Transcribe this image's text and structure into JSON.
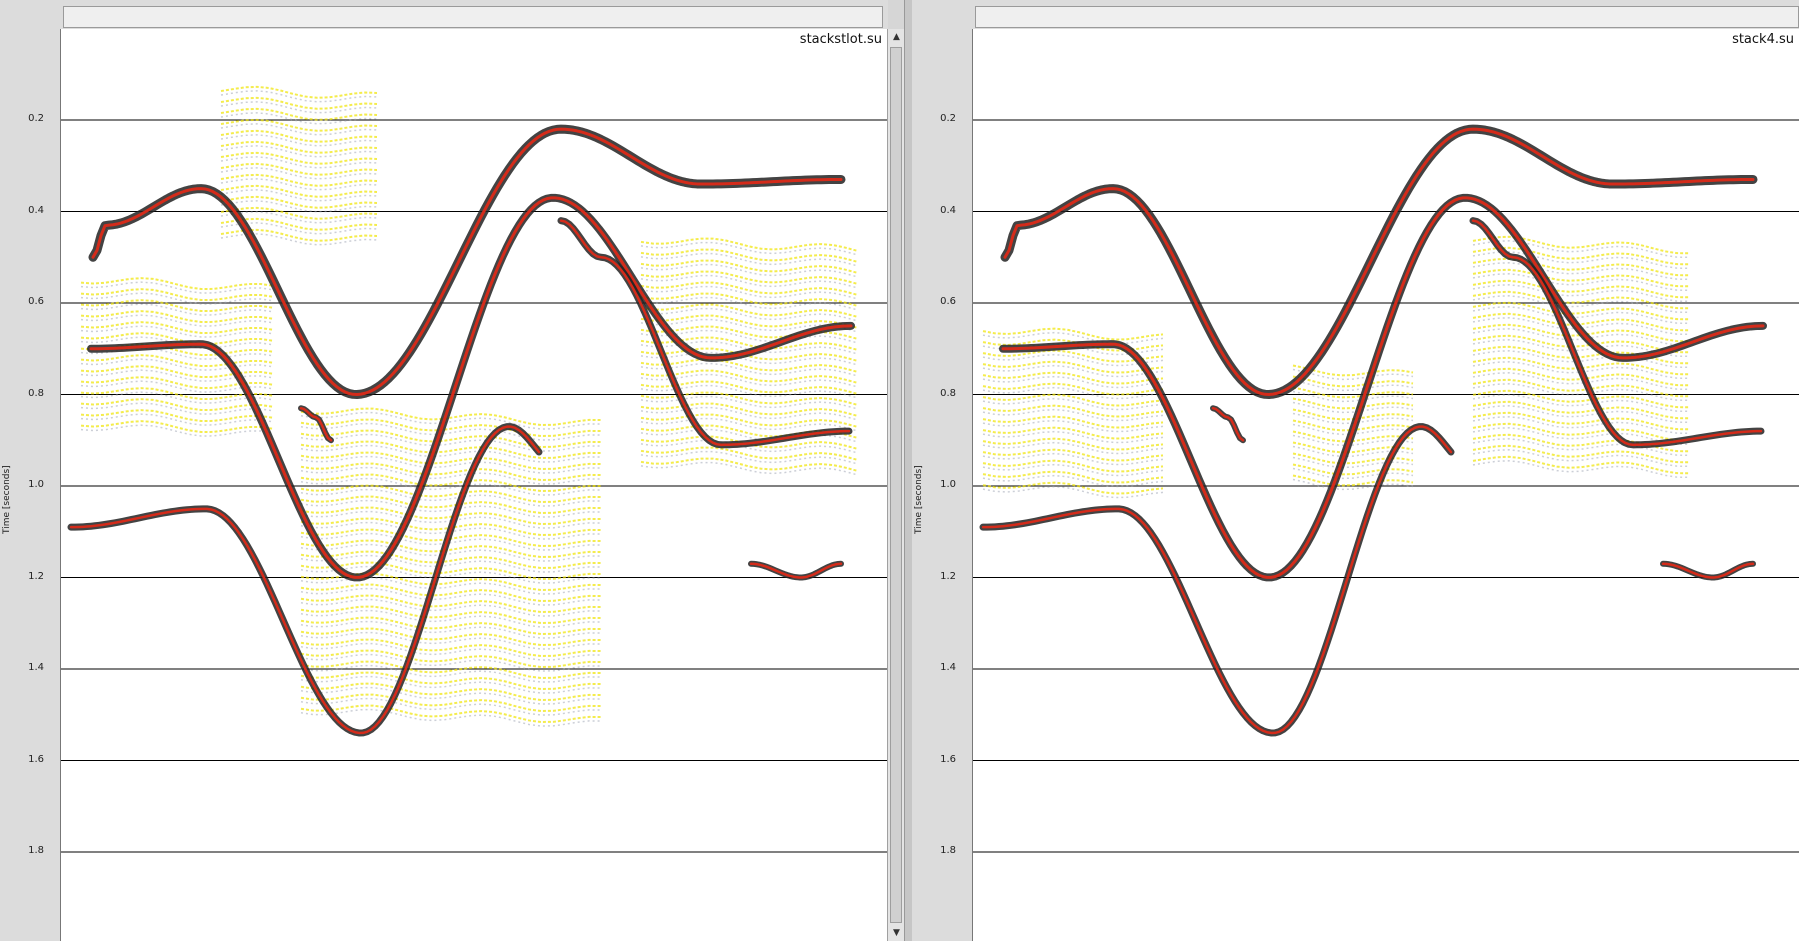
{
  "panels": [
    {
      "file_label": "stackstlot.su",
      "axis_label": "Time [seconds]"
    },
    {
      "file_label": "stack4.su",
      "axis_label": "Time [seconds]"
    }
  ],
  "ticks": [
    "0.2",
    "0.4",
    "0.6",
    "0.8",
    "1.0",
    "1.2",
    "1.4",
    "1.6",
    "1.8"
  ],
  "scroll": {
    "up_icon": "▲",
    "down_icon": "▼"
  },
  "colors": {
    "event_core": "#d42b1a",
    "event_halo": "#111111",
    "noise": "#f0e400",
    "grid": "#000000"
  }
}
